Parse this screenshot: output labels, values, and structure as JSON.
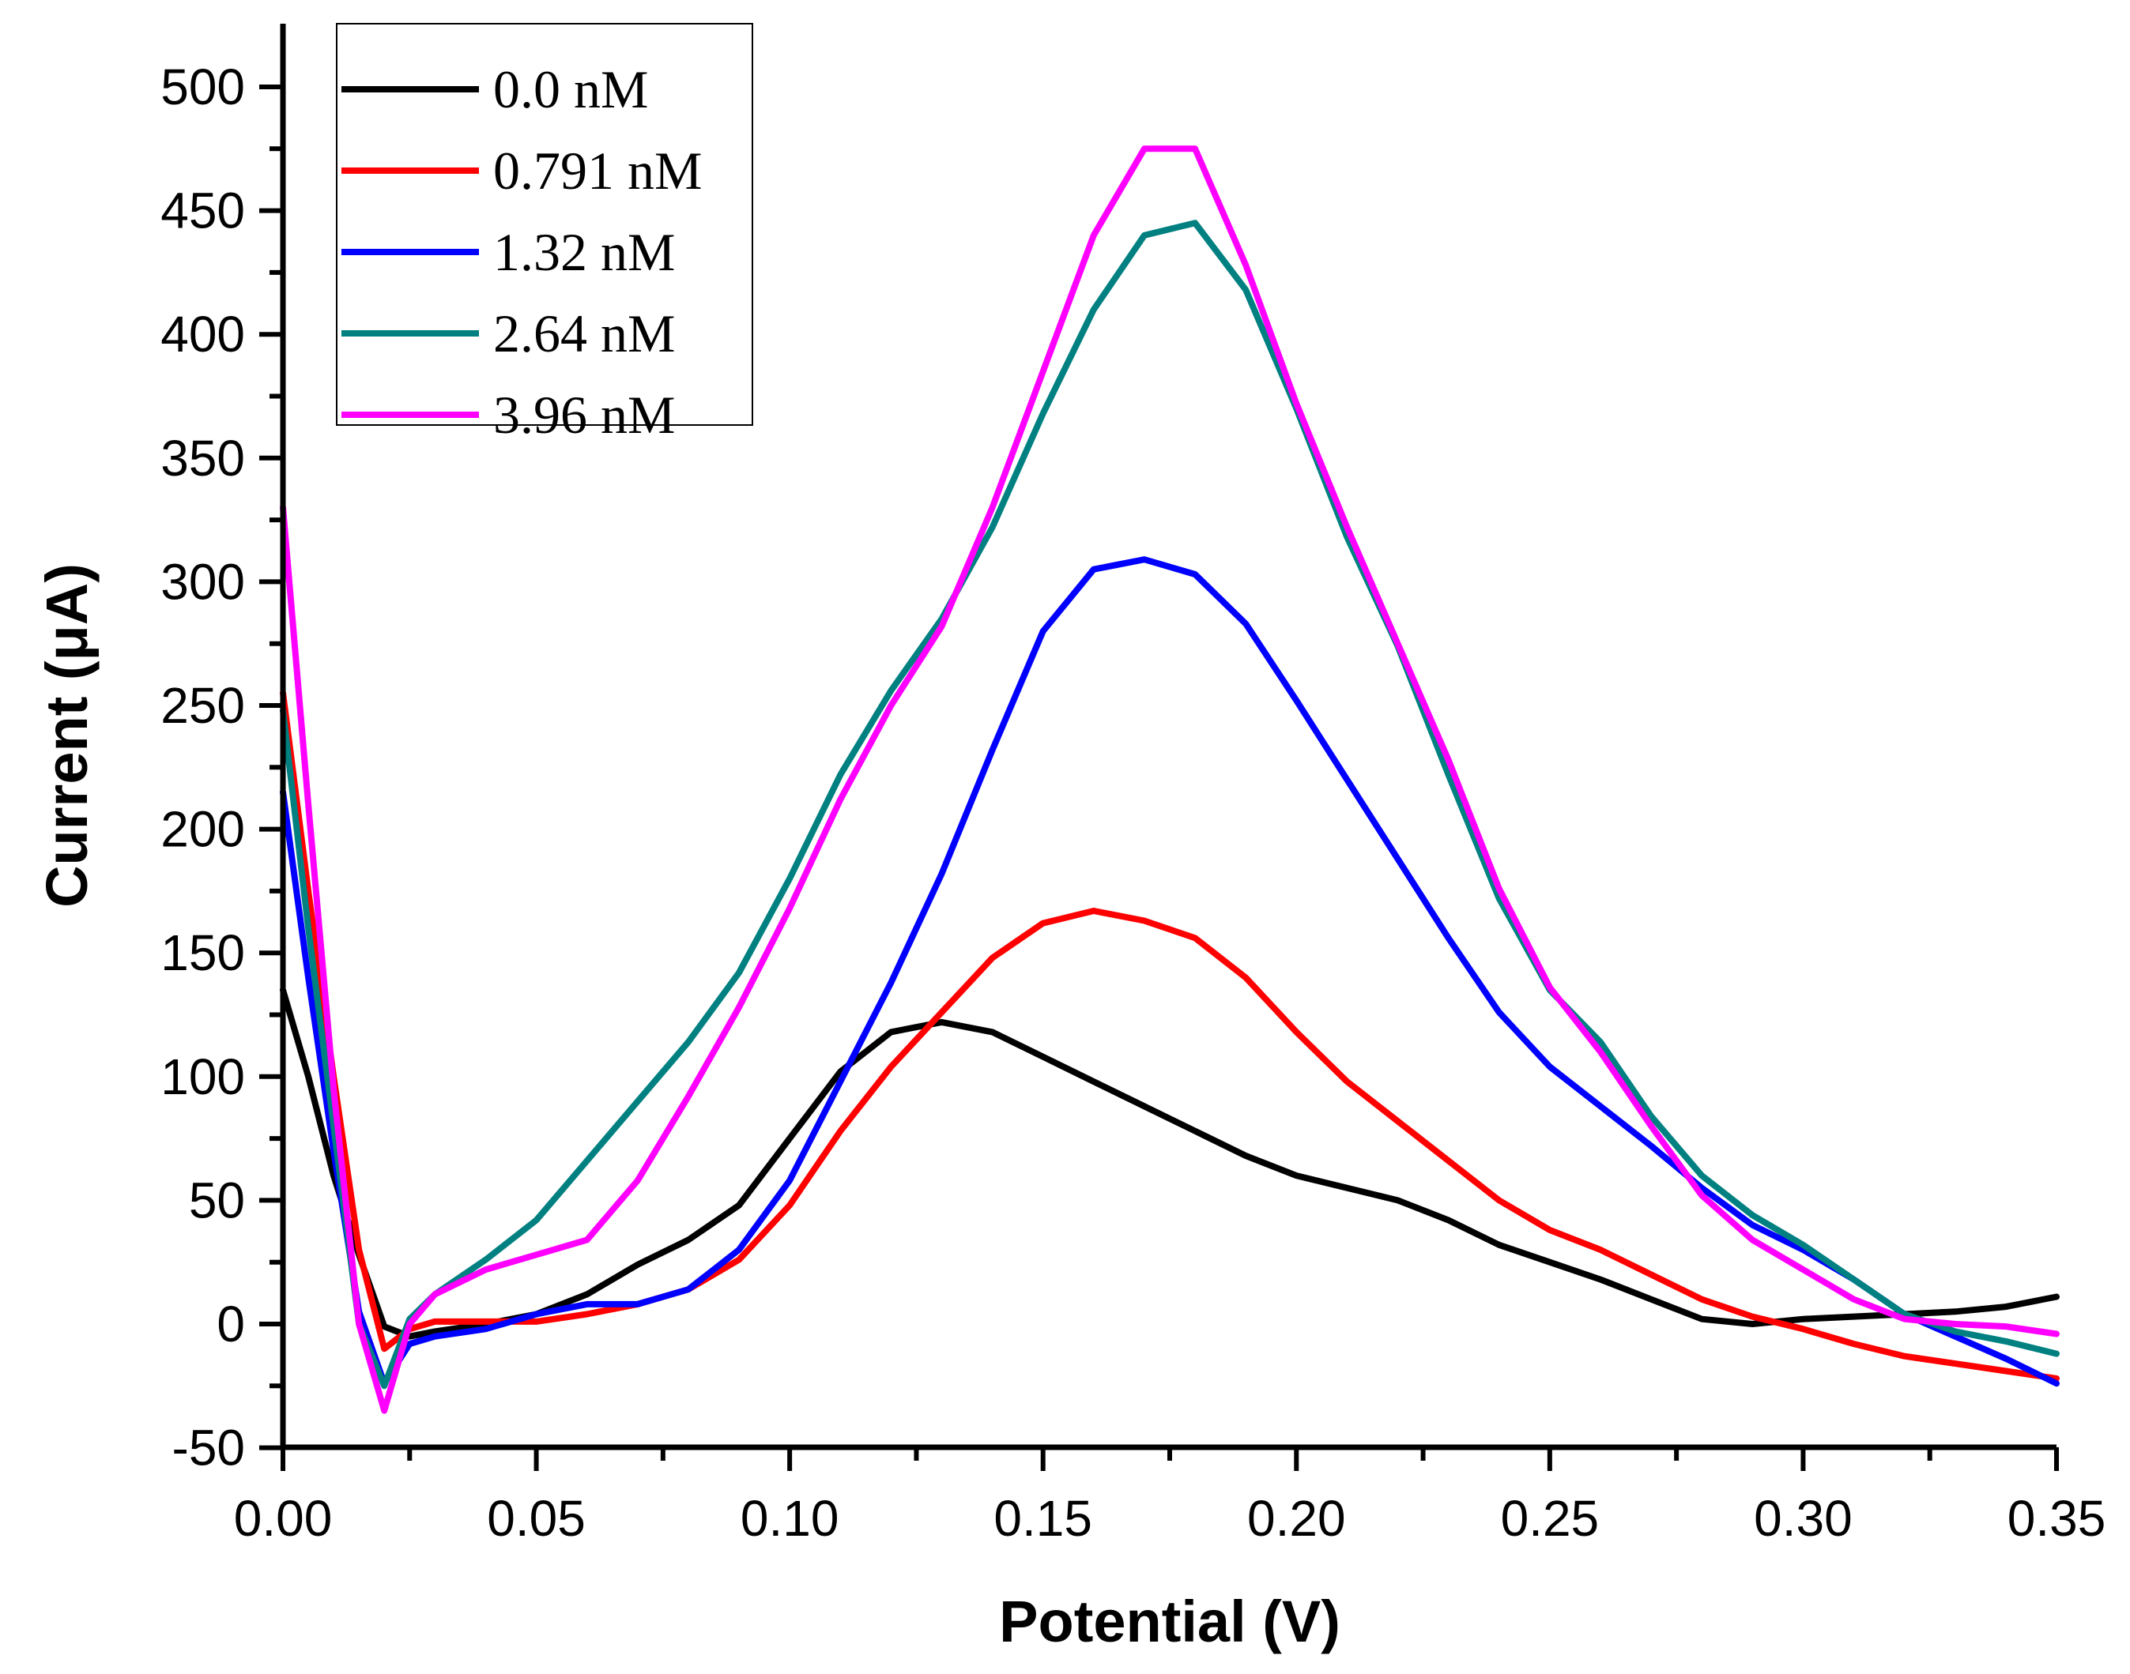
{
  "chart_data": {
    "type": "line",
    "title": "",
    "xlabel": "Potential (V)",
    "ylabel": "Current (μA)",
    "xlim": [
      0.0,
      0.35
    ],
    "ylim": [
      -50,
      520
    ],
    "x_ticks": [
      0.0,
      0.05,
      0.1,
      0.15,
      0.2,
      0.25,
      0.3,
      0.35
    ],
    "x_tick_labels": [
      "0.00",
      "0.05",
      "0.10",
      "0.15",
      "0.20",
      "0.25",
      "0.30",
      "0.35"
    ],
    "y_ticks": [
      -50,
      0,
      50,
      100,
      150,
      200,
      250,
      300,
      350,
      400,
      450,
      500
    ],
    "y_tick_labels": [
      "-50",
      "0",
      "50",
      "100",
      "150",
      "200",
      "250",
      "300",
      "350",
      "400",
      "450",
      "500"
    ],
    "legend_position": "top-left",
    "series": [
      {
        "name": "0.0 nM",
        "color": "#000000",
        "points": [
          [
            0.0,
            135
          ],
          [
            0.005,
            100
          ],
          [
            0.01,
            60
          ],
          [
            0.015,
            28
          ],
          [
            0.02,
            -1
          ],
          [
            0.025,
            -5
          ],
          [
            0.03,
            -3
          ],
          [
            0.04,
            0
          ],
          [
            0.05,
            4
          ],
          [
            0.06,
            12
          ],
          [
            0.07,
            24
          ],
          [
            0.08,
            34
          ],
          [
            0.09,
            48
          ],
          [
            0.1,
            75
          ],
          [
            0.11,
            102
          ],
          [
            0.12,
            118
          ],
          [
            0.13,
            122
          ],
          [
            0.14,
            118
          ],
          [
            0.15,
            108
          ],
          [
            0.16,
            98
          ],
          [
            0.17,
            88
          ],
          [
            0.18,
            78
          ],
          [
            0.19,
            68
          ],
          [
            0.2,
            60
          ],
          [
            0.21,
            55
          ],
          [
            0.22,
            50
          ],
          [
            0.23,
            42
          ],
          [
            0.24,
            32
          ],
          [
            0.25,
            25
          ],
          [
            0.26,
            18
          ],
          [
            0.27,
            10
          ],
          [
            0.28,
            2
          ],
          [
            0.29,
            0
          ],
          [
            0.3,
            2
          ],
          [
            0.31,
            3
          ],
          [
            0.32,
            4
          ],
          [
            0.33,
            5
          ],
          [
            0.34,
            7
          ],
          [
            0.35,
            11
          ]
        ]
      },
      {
        "name": "0.791 nM",
        "color": "#ff0000",
        "points": [
          [
            0.0,
            255
          ],
          [
            0.005,
            175
          ],
          [
            0.01,
            100
          ],
          [
            0.015,
            30
          ],
          [
            0.02,
            -10
          ],
          [
            0.025,
            -2
          ],
          [
            0.03,
            1
          ],
          [
            0.04,
            1
          ],
          [
            0.05,
            1
          ],
          [
            0.06,
            4
          ],
          [
            0.07,
            8
          ],
          [
            0.08,
            14
          ],
          [
            0.09,
            26
          ],
          [
            0.1,
            48
          ],
          [
            0.11,
            78
          ],
          [
            0.12,
            104
          ],
          [
            0.13,
            126
          ],
          [
            0.14,
            148
          ],
          [
            0.15,
            162
          ],
          [
            0.16,
            167
          ],
          [
            0.17,
            163
          ],
          [
            0.18,
            156
          ],
          [
            0.19,
            140
          ],
          [
            0.2,
            118
          ],
          [
            0.21,
            98
          ],
          [
            0.22,
            82
          ],
          [
            0.23,
            66
          ],
          [
            0.24,
            50
          ],
          [
            0.25,
            38
          ],
          [
            0.26,
            30
          ],
          [
            0.27,
            20
          ],
          [
            0.28,
            10
          ],
          [
            0.29,
            3
          ],
          [
            0.3,
            -2
          ],
          [
            0.31,
            -8
          ],
          [
            0.32,
            -13
          ],
          [
            0.33,
            -16
          ],
          [
            0.34,
            -19
          ],
          [
            0.35,
            -22
          ]
        ]
      },
      {
        "name": "1.32 nM",
        "color": "#0000ff",
        "points": [
          [
            0.0,
            215
          ],
          [
            0.005,
            140
          ],
          [
            0.01,
            70
          ],
          [
            0.015,
            5
          ],
          [
            0.02,
            -24
          ],
          [
            0.025,
            -8
          ],
          [
            0.03,
            -5
          ],
          [
            0.04,
            -2
          ],
          [
            0.05,
            4
          ],
          [
            0.06,
            8
          ],
          [
            0.07,
            8
          ],
          [
            0.08,
            14
          ],
          [
            0.09,
            30
          ],
          [
            0.1,
            58
          ],
          [
            0.11,
            98
          ],
          [
            0.12,
            138
          ],
          [
            0.13,
            182
          ],
          [
            0.14,
            232
          ],
          [
            0.15,
            280
          ],
          [
            0.16,
            305
          ],
          [
            0.17,
            309
          ],
          [
            0.18,
            303
          ],
          [
            0.19,
            283
          ],
          [
            0.2,
            252
          ],
          [
            0.21,
            220
          ],
          [
            0.22,
            188
          ],
          [
            0.23,
            156
          ],
          [
            0.24,
            126
          ],
          [
            0.25,
            104
          ],
          [
            0.26,
            88
          ],
          [
            0.27,
            72
          ],
          [
            0.28,
            55
          ],
          [
            0.29,
            40
          ],
          [
            0.3,
            30
          ],
          [
            0.31,
            18
          ],
          [
            0.32,
            4
          ],
          [
            0.33,
            -5
          ],
          [
            0.34,
            -14
          ],
          [
            0.35,
            -24
          ]
        ]
      },
      {
        "name": "2.64 nM",
        "color": "#008080",
        "points": [
          [
            0.0,
            248
          ],
          [
            0.005,
            160
          ],
          [
            0.01,
            80
          ],
          [
            0.015,
            0
          ],
          [
            0.02,
            -25
          ],
          [
            0.025,
            2
          ],
          [
            0.03,
            12
          ],
          [
            0.04,
            26
          ],
          [
            0.05,
            42
          ],
          [
            0.06,
            66
          ],
          [
            0.07,
            90
          ],
          [
            0.08,
            114
          ],
          [
            0.09,
            142
          ],
          [
            0.1,
            180
          ],
          [
            0.11,
            222
          ],
          [
            0.12,
            256
          ],
          [
            0.13,
            285
          ],
          [
            0.14,
            322
          ],
          [
            0.15,
            368
          ],
          [
            0.16,
            410
          ],
          [
            0.17,
            440
          ],
          [
            0.18,
            445
          ],
          [
            0.19,
            418
          ],
          [
            0.2,
            370
          ],
          [
            0.21,
            318
          ],
          [
            0.22,
            274
          ],
          [
            0.23,
            222
          ],
          [
            0.24,
            172
          ],
          [
            0.25,
            135
          ],
          [
            0.26,
            114
          ],
          [
            0.27,
            84
          ],
          [
            0.28,
            60
          ],
          [
            0.29,
            44
          ],
          [
            0.3,
            32
          ],
          [
            0.31,
            18
          ],
          [
            0.32,
            4
          ],
          [
            0.33,
            -3
          ],
          [
            0.34,
            -7
          ],
          [
            0.35,
            -12
          ]
        ]
      },
      {
        "name": "3.96 nM",
        "color": "#ff00ff",
        "points": [
          [
            0.0,
            330
          ],
          [
            0.005,
            210
          ],
          [
            0.01,
            95
          ],
          [
            0.015,
            0
          ],
          [
            0.02,
            -35
          ],
          [
            0.025,
            0
          ],
          [
            0.03,
            12
          ],
          [
            0.04,
            22
          ],
          [
            0.05,
            28
          ],
          [
            0.06,
            34
          ],
          [
            0.07,
            58
          ],
          [
            0.08,
            92
          ],
          [
            0.09,
            128
          ],
          [
            0.1,
            168
          ],
          [
            0.11,
            212
          ],
          [
            0.12,
            250
          ],
          [
            0.13,
            282
          ],
          [
            0.14,
            330
          ],
          [
            0.15,
            385
          ],
          [
            0.16,
            440
          ],
          [
            0.17,
            475
          ],
          [
            0.18,
            475
          ],
          [
            0.19,
            428
          ],
          [
            0.2,
            372
          ],
          [
            0.21,
            322
          ],
          [
            0.22,
            275
          ],
          [
            0.23,
            228
          ],
          [
            0.24,
            176
          ],
          [
            0.25,
            136
          ],
          [
            0.26,
            110
          ],
          [
            0.27,
            80
          ],
          [
            0.28,
            52
          ],
          [
            0.29,
            34
          ],
          [
            0.3,
            22
          ],
          [
            0.31,
            10
          ],
          [
            0.32,
            2
          ],
          [
            0.33,
            0
          ],
          [
            0.34,
            -1
          ],
          [
            0.35,
            -4
          ]
        ]
      }
    ]
  }
}
